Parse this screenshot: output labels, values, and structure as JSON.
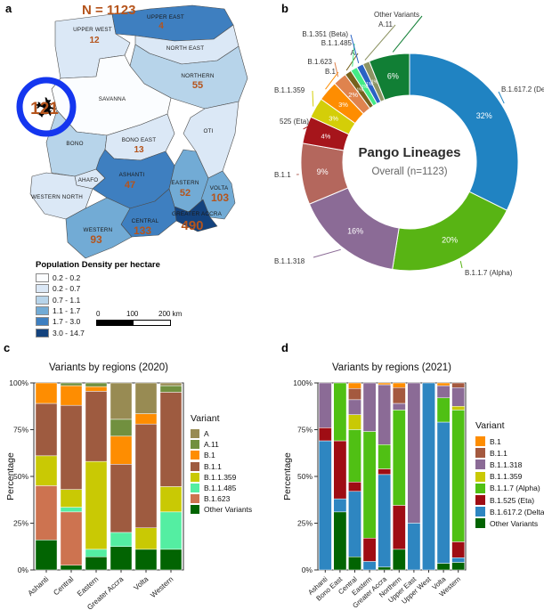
{
  "figure": {
    "panel_labels": {
      "a": "a",
      "b": "b",
      "c": "c",
      "d": "d"
    }
  },
  "map": {
    "n_label": "N = 1123",
    "airport_count": "121",
    "legend_title": "Population Density per hectare",
    "density_classes": [
      {
        "range": "0.2 - 0.2",
        "color": "#fbfdff"
      },
      {
        "range": "0.2 - 0.7",
        "color": "#dbe8f6"
      },
      {
        "range": "0.7 - 1.1",
        "color": "#b7d4ea"
      },
      {
        "range": "1.1 - 1.7",
        "color": "#72abd5"
      },
      {
        "range": "1.7 - 3.0",
        "color": "#3e7fc0"
      },
      {
        "range": "3.0 - 14.7",
        "color": "#14437e"
      }
    ],
    "scale_bar_ticks": [
      "0",
      "100",
      "200 km"
    ],
    "regions": [
      {
        "name": "UPPER WEST",
        "count": "12",
        "density_class": 1
      },
      {
        "name": "UPPER EAST",
        "count": "4",
        "density_class": 4
      },
      {
        "name": "NORTH EAST",
        "count": "",
        "density_class": 1
      },
      {
        "name": "NORTHERN",
        "count": "55",
        "density_class": 2
      },
      {
        "name": "SAVANNA",
        "count": "",
        "density_class": 0
      },
      {
        "name": "OTI",
        "count": "",
        "density_class": 1
      },
      {
        "name": "BONO",
        "count": "",
        "density_class": 2
      },
      {
        "name": "BONO EAST",
        "count": "13",
        "density_class": 1
      },
      {
        "name": "AHAFO",
        "count": "",
        "density_class": 1
      },
      {
        "name": "ASHANTI",
        "count": "47",
        "density_class": 4
      },
      {
        "name": "WESTERN NORTH",
        "count": "",
        "density_class": 1
      },
      {
        "name": "EASTERN",
        "count": "52",
        "density_class": 3
      },
      {
        "name": "VOLTA",
        "count": "103",
        "density_class": 3
      },
      {
        "name": "GREATER ACCRA",
        "count": "490",
        "density_class": 5
      },
      {
        "name": "CENTRAL",
        "count": "133",
        "density_class": 4
      },
      {
        "name": "WESTERN",
        "count": "93",
        "density_class": 3
      }
    ]
  },
  "chart_data": [
    {
      "type": "pie",
      "donut": true,
      "title": "Pango Lineages",
      "subtitle": "Overall (n=1123)",
      "slices": [
        {
          "label": "B.1.617.2 (Delta)",
          "pct": 32,
          "color": "#2083c2"
        },
        {
          "label": "B.1.1.7 (Alpha)",
          "pct": 20,
          "color": "#58b414"
        },
        {
          "label": "B.1.1.318",
          "pct": 16,
          "color": "#8b6b96"
        },
        {
          "label": "B.1.1",
          "pct": 9,
          "color": "#b4675d"
        },
        {
          "label": "525 (Eta)",
          "pct": 4,
          "color": "#a6151b"
        },
        {
          "label": "B.1.1.359",
          "pct": 3,
          "color": "#d4ce08"
        },
        {
          "label": "B.1",
          "pct": 3,
          "color": "#fe8d01"
        },
        {
          "label": "B.1.623",
          "pct": 2,
          "color": "#df834e"
        },
        {
          "label": "A",
          "pct": 1,
          "color": "#77621d"
        },
        {
          "label": "B.1.1.485",
          "pct": 1,
          "color": "#43ea86"
        },
        {
          "label": "B.1.351 (Beta)",
          "pct": 1,
          "color": "#2a63c5"
        },
        {
          "label": "A.11",
          "pct": 1,
          "color": "#8e9464"
        },
        {
          "label": "Other Variants",
          "pct": 6,
          "color": "#117f35"
        }
      ]
    },
    {
      "type": "bar",
      "stacked": true,
      "title": "Variants by regions (2020)",
      "ylabel": "Percentage",
      "legend_title": "Variant",
      "y_ticks": [
        "0%",
        "25%",
        "50%",
        "75%",
        "100%"
      ],
      "ylim": [
        0,
        100
      ],
      "categories": [
        "Ashanti",
        "Central",
        "Eastern",
        "Greater Accra",
        "Volta",
        "Western"
      ],
      "series": [
        {
          "name": "A",
          "color": "#988b53",
          "values": [
            0,
            0,
            0,
            19.5,
            16.5,
            1.5
          ]
        },
        {
          "name": "A.11",
          "color": "#71903f",
          "values": [
            0,
            1.5,
            2,
            9,
            0,
            3.5
          ]
        },
        {
          "name": "B.1",
          "color": "#fe8d01",
          "values": [
            11,
            10.5,
            2.5,
            15,
            5.5,
            0
          ]
        },
        {
          "name": "B.1.1",
          "color": "#9e5b40",
          "values": [
            28,
            45,
            37.5,
            36.5,
            55.5,
            50.5
          ]
        },
        {
          "name": "B.1.1.359",
          "color": "#c9c904",
          "values": [
            16,
            9.5,
            47,
            0,
            11.5,
            13.5
          ]
        },
        {
          "name": "B.1.1.485",
          "color": "#54eea2",
          "values": [
            0,
            2.5,
            4,
            7.5,
            0,
            20
          ]
        },
        {
          "name": "B.1.623",
          "color": "#cd7350",
          "values": [
            29,
            28.5,
            0,
            0,
            0,
            0
          ]
        },
        {
          "name": "Other Variants",
          "color": "#026402",
          "values": [
            16,
            2.5,
            7,
            12.5,
            11,
            11
          ]
        }
      ]
    },
    {
      "type": "bar",
      "stacked": true,
      "title": "Variants by regions (2021)",
      "ylabel": "Percentage",
      "legend_title": "Variant",
      "y_ticks": [
        "0%",
        "25%",
        "50%",
        "75%",
        "100%"
      ],
      "ylim": [
        0,
        100
      ],
      "categories": [
        "Ashanti",
        "Bono East",
        "Central",
        "Eastern",
        "Greater Accra",
        "Northern",
        "Upper East",
        "Upper West",
        "Volta",
        "Western"
      ],
      "series": [
        {
          "name": "B.1",
          "color": "#fe8d01",
          "values": [
            0,
            0,
            3,
            0,
            1,
            2.5,
            0,
            0,
            1.5,
            0
          ]
        },
        {
          "name": "B.1.1",
          "color": "#a4593f",
          "values": [
            0,
            0,
            6,
            0,
            0,
            8.5,
            0,
            0,
            0,
            2.5
          ]
        },
        {
          "name": "B.1.1.318",
          "color": "#8b6b96",
          "values": [
            24,
            0,
            8,
            26,
            32,
            3.5,
            75,
            0,
            6.5,
            10
          ]
        },
        {
          "name": "B.1.1.359",
          "color": "#c9c904",
          "values": [
            0,
            0,
            8,
            0,
            0,
            0,
            0,
            0,
            0,
            2
          ]
        },
        {
          "name": "B.1.1.7 (Alpha)",
          "color": "#50c014",
          "values": [
            0,
            31,
            28,
            57,
            13,
            51,
            0,
            0,
            13,
            70.5
          ]
        },
        {
          "name": "B.1.525 (Eta)",
          "color": "#9f0d14",
          "values": [
            7,
            31,
            5,
            12.5,
            3,
            23.5,
            0,
            0,
            0,
            8.5
          ]
        },
        {
          "name": "B.1.617.2 (Delta)",
          "color": "#2e86c1",
          "values": [
            69,
            7,
            35,
            4.5,
            49.5,
            0,
            25,
            100,
            75.5,
            2.5
          ]
        },
        {
          "name": "Other Variants",
          "color": "#026402",
          "values": [
            0,
            31,
            7,
            0,
            1.5,
            11,
            0,
            0,
            3.5,
            4
          ]
        }
      ]
    }
  ]
}
